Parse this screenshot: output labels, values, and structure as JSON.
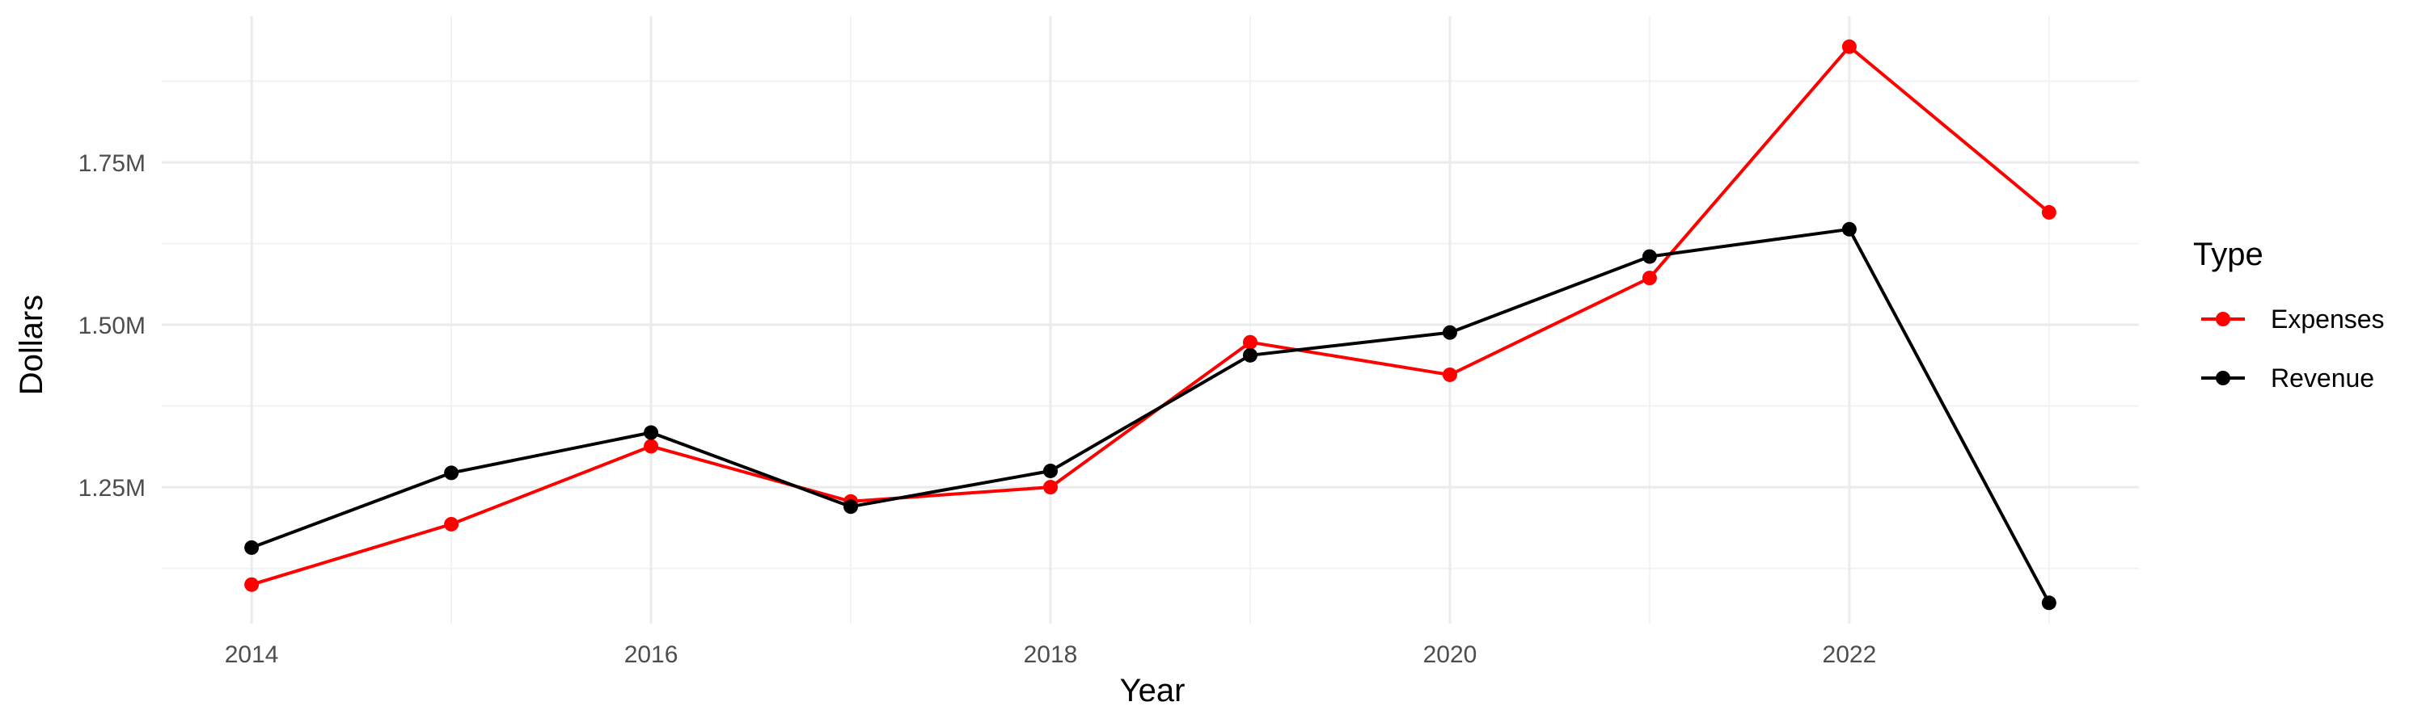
{
  "chart_data": {
    "type": "line",
    "title": "",
    "xlabel": "Year",
    "ylabel": "Dollars",
    "x": [
      2014,
      2015,
      2016,
      2017,
      2018,
      2019,
      2020,
      2021,
      2022,
      2023
    ],
    "xlim": [
      2013.55,
      2023.45
    ],
    "ylim": [
      1040000,
      1975000
    ],
    "x_ticks": [
      2014,
      2016,
      2018,
      2020,
      2022
    ],
    "x_tick_labels": [
      "2014",
      "2016",
      "2018",
      "2020",
      "2022"
    ],
    "y_ticks": [
      1250000,
      1500000,
      1750000
    ],
    "y_tick_labels": [
      "1.25M",
      "1.50M",
      "1.75M"
    ],
    "grid": true,
    "legend": {
      "title": "Type",
      "placement": "right"
    },
    "series": [
      {
        "name": "Expenses",
        "color": "#ff0000",
        "values": [
          1100000,
          1193000,
          1313000,
          1228000,
          1250000,
          1473000,
          1423000,
          1572000,
          1928000,
          1673000
        ]
      },
      {
        "name": "Revenue",
        "color": "#000000",
        "values": [
          1157000,
          1272000,
          1334000,
          1220000,
          1275000,
          1453000,
          1488000,
          1605000,
          1647000,
          1072000
        ]
      }
    ]
  }
}
